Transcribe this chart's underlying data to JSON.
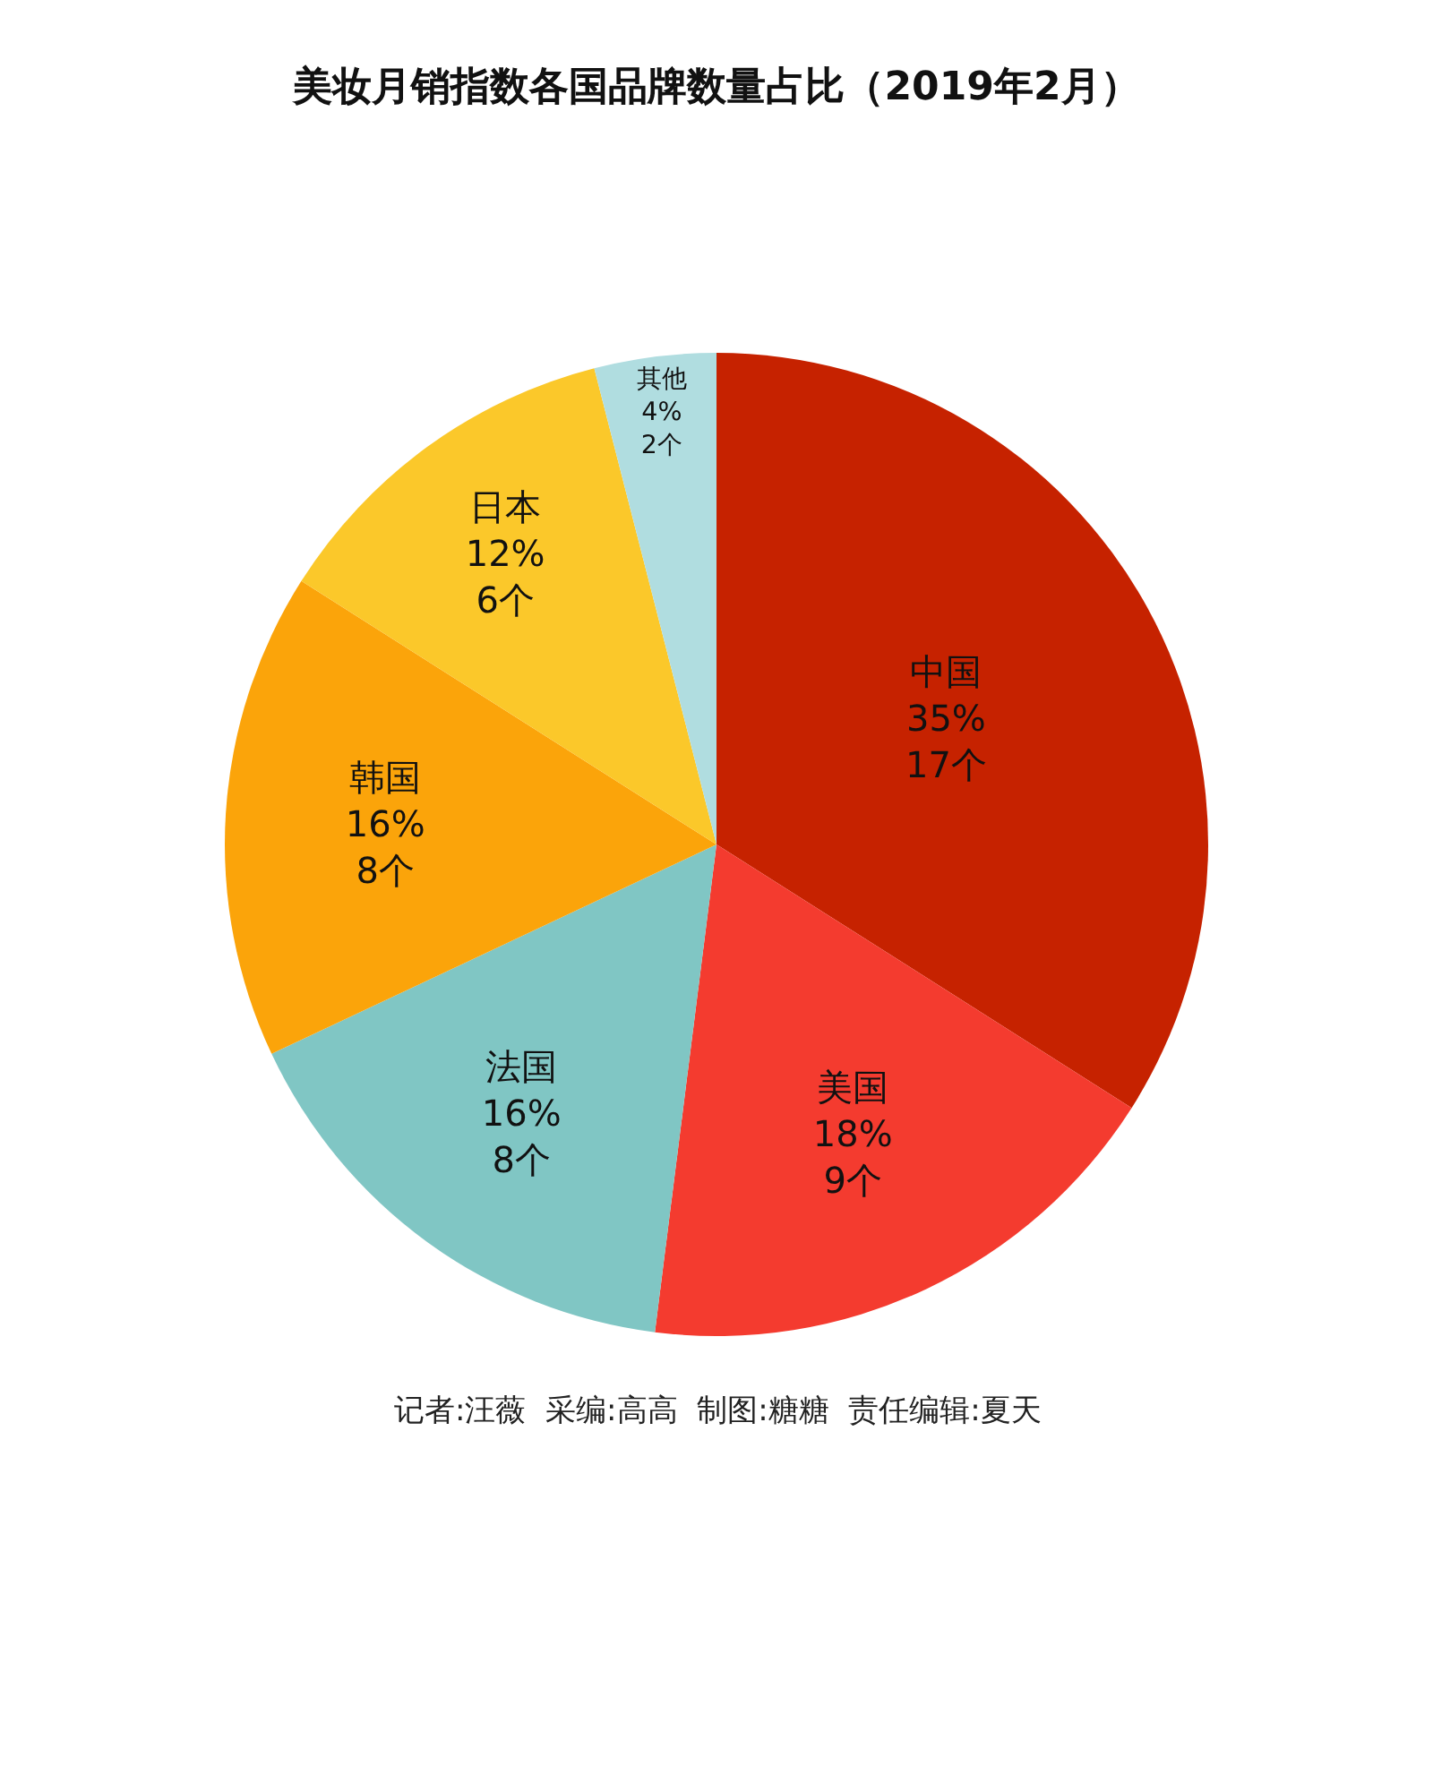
{
  "chart_data": {
    "type": "pie",
    "title": "美妆月销指数各国品牌数量占比（2019年2月）",
    "categories": [
      "中国",
      "美国",
      "法国",
      "韩国",
      "日本",
      "其他"
    ],
    "values": [
      17,
      9,
      8,
      8,
      6,
      2
    ],
    "value_labels": [
      "35%\n17个",
      "18%\n9个",
      "16%\n8个",
      "16%\n8个",
      "12%\n6个",
      "4%\n2个"
    ],
    "colors": [
      "#c62200",
      "#f43b2f",
      "#80c6c4",
      "#fba40a",
      "#fbc82a",
      "#b0dde0"
    ],
    "legend": false,
    "annotations": [
      "记者:汪薇  采编:高高  制图:糖糖  责任编辑:夏天"
    ]
  }
}
